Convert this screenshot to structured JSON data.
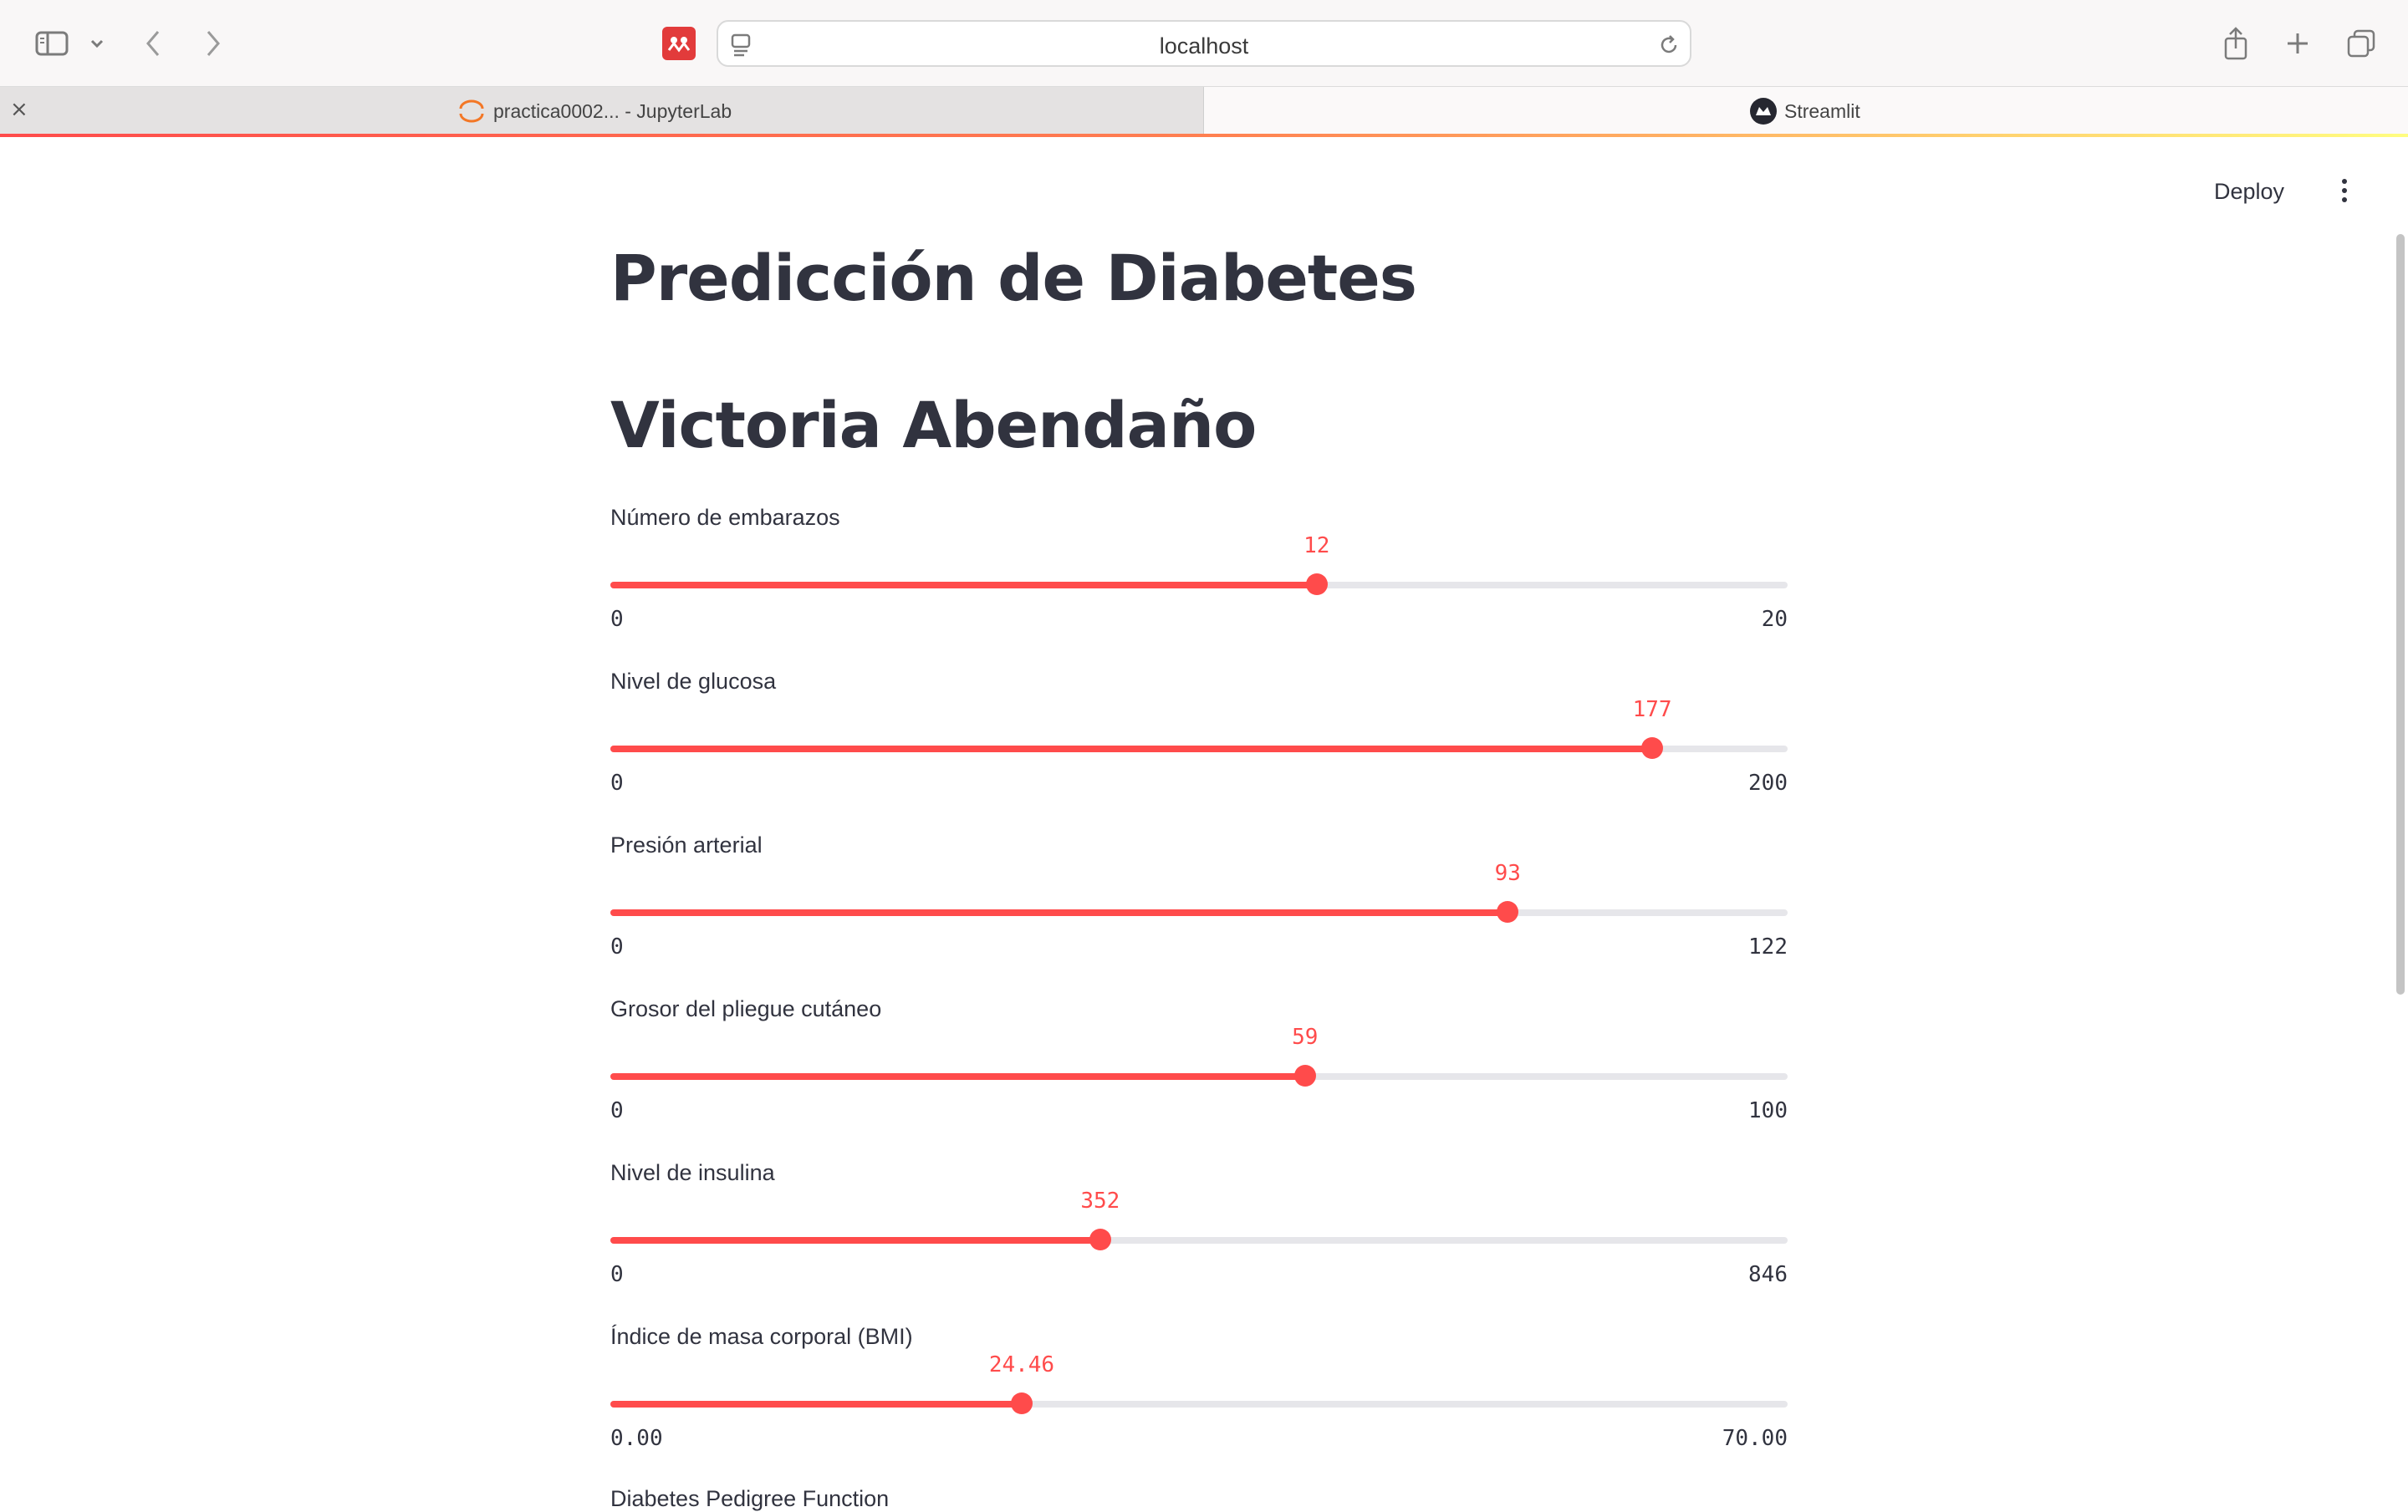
{
  "browser": {
    "url": "localhost",
    "tabs": [
      {
        "title": "practica0002... - JupyterLab",
        "active": false
      },
      {
        "title": "Streamlit",
        "active": true
      }
    ]
  },
  "header": {
    "deploy_label": "Deploy"
  },
  "page": {
    "title": "Predicción de Diabetes",
    "subtitle": "Victoria Abendaño"
  },
  "sliders": [
    {
      "label": "Número de embarazos",
      "value": "12",
      "min": "0",
      "max": "20",
      "fraction": 0.6
    },
    {
      "label": "Nivel de glucosa",
      "value": "177",
      "min": "0",
      "max": "200",
      "fraction": 0.885
    },
    {
      "label": "Presión arterial",
      "value": "93",
      "min": "0",
      "max": "122",
      "fraction": 0.7623
    },
    {
      "label": "Grosor del pliegue cutáneo",
      "value": "59",
      "min": "0",
      "max": "100",
      "fraction": 0.59
    },
    {
      "label": "Nivel de insulina",
      "value": "352",
      "min": "0",
      "max": "846",
      "fraction": 0.4161
    },
    {
      "label": "Índice de masa corporal (BMI)",
      "value": "24.46",
      "min": "0.00",
      "max": "70.00",
      "fraction": 0.3494
    }
  ],
  "next_label": "Diabetes Pedigree Function",
  "colors": {
    "accent": "#ff4b4b",
    "text": "#31333f",
    "track": "#e6e6ea"
  }
}
